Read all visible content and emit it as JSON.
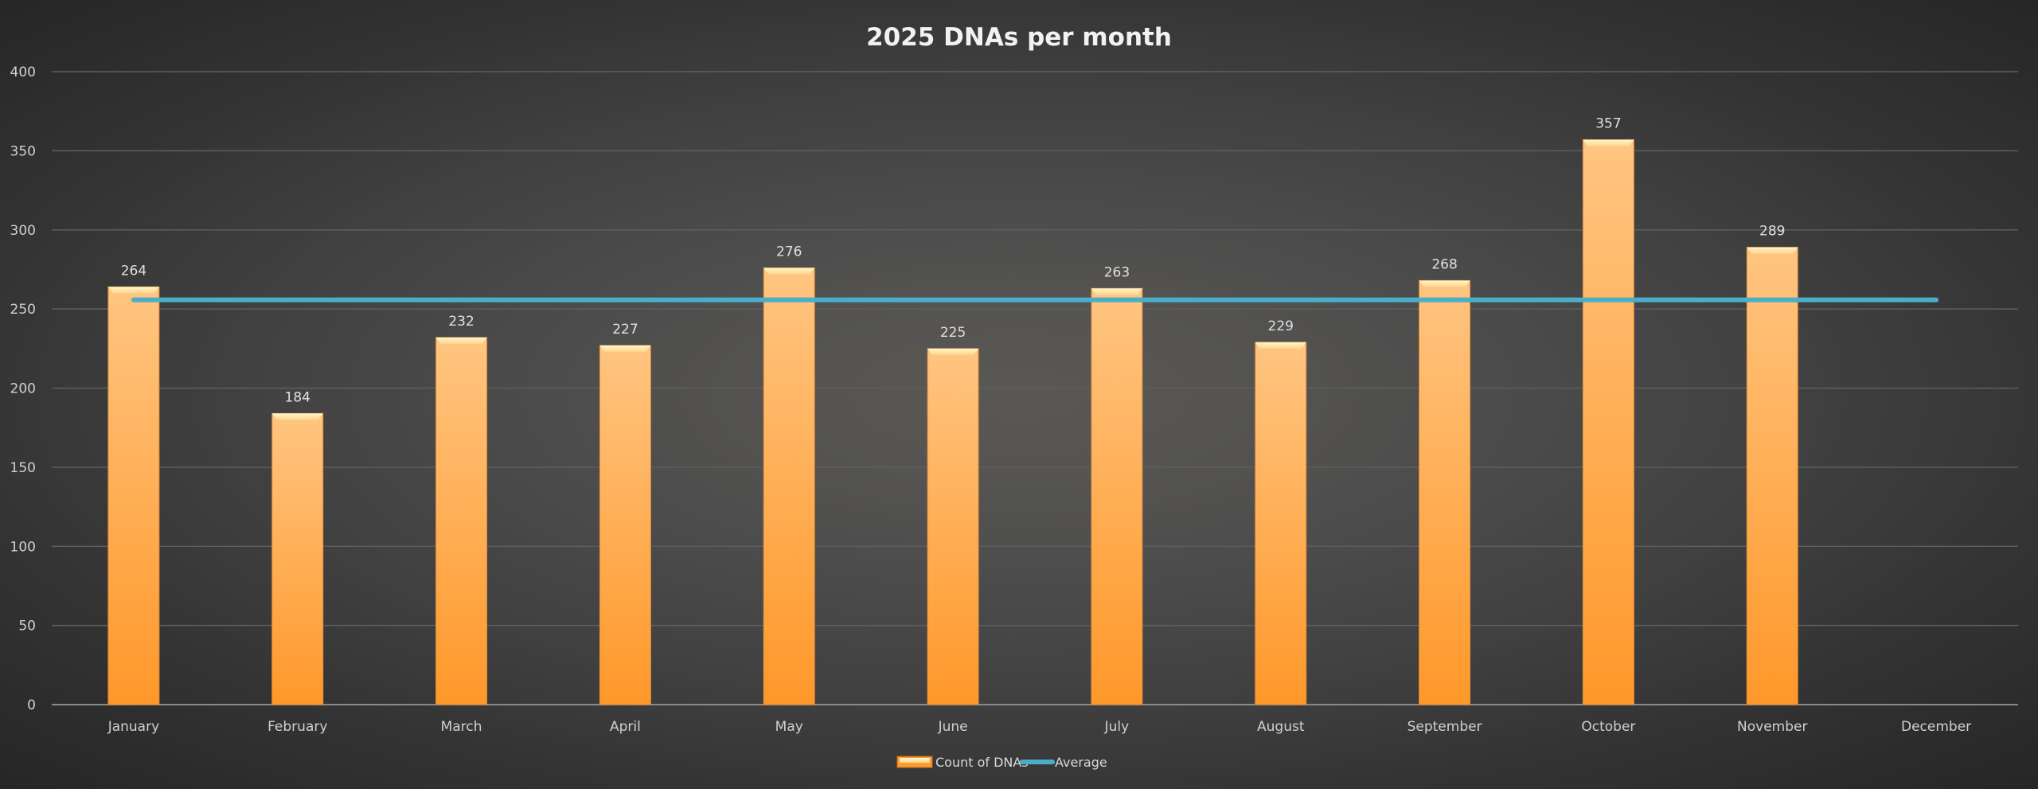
{
  "chart_data": {
    "type": "bar",
    "title": "2025 DNAs per month",
    "xlabel": "",
    "ylabel": "",
    "ylim": [
      0,
      400
    ],
    "yticks": [
      0,
      50,
      100,
      150,
      200,
      250,
      300,
      350,
      400
    ],
    "grid": true,
    "legend_position": "bottom",
    "categories": [
      "January",
      "February",
      "March",
      "April",
      "May",
      "June",
      "July",
      "August",
      "September",
      "October",
      "November",
      "December"
    ],
    "series": [
      {
        "name": "Count of DNAs",
        "type": "bar",
        "values": [
          264,
          184,
          232,
          227,
          276,
          225,
          263,
          229,
          268,
          357,
          289,
          null
        ]
      },
      {
        "name": "Average",
        "type": "line",
        "values": [
          255.8,
          255.8,
          255.8,
          255.8,
          255.8,
          255.8,
          255.8,
          255.8,
          255.8,
          255.8,
          255.8,
          255.8
        ]
      }
    ],
    "colors": {
      "bar": "#ff9a2e",
      "bar_top": "#ffc47f",
      "average": "#4aaec8"
    }
  }
}
